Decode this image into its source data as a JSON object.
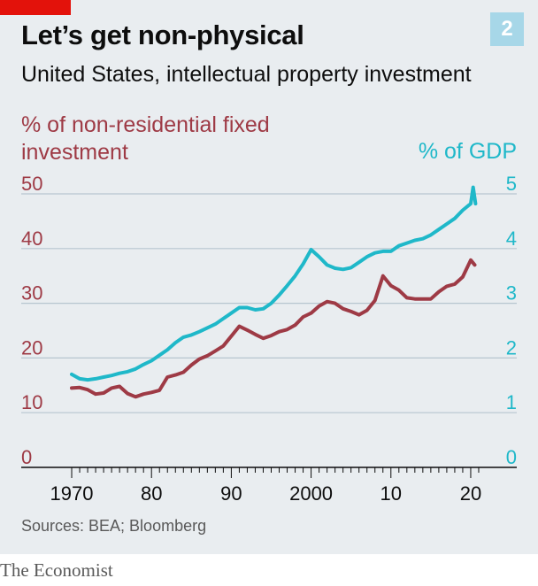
{
  "header": {
    "chart_number": "2",
    "title": "Let’s get non-physical",
    "subtitle": "United States, intellectual property investment"
  },
  "footer": {
    "source": "Sources: BEA; Bloomberg",
    "brand": "The Economist"
  },
  "colors": {
    "left_series": "#9e3a45",
    "right_series": "#1fb8c9",
    "accent": "#e3120b",
    "panel": "#e9edf0"
  },
  "chart_data": {
    "type": "line",
    "left_axis": {
      "label": "% of non-residential fixed investment",
      "ticks": [
        "50",
        "40",
        "30",
        "20",
        "10",
        "0"
      ],
      "ylim": [
        0,
        50
      ]
    },
    "right_axis": {
      "label": "% of GDP",
      "ticks": [
        "5",
        "4",
        "3",
        "2",
        "1",
        "0"
      ],
      "ylim": [
        0,
        5
      ]
    },
    "x_axis": {
      "tick_labels": [
        "1970",
        "80",
        "90",
        "2000",
        "10",
        "20"
      ],
      "tick_years": [
        1970,
        1980,
        1990,
        2000,
        2010,
        2020
      ],
      "xlim": [
        1969,
        2022
      ]
    },
    "grid": true,
    "series": [
      {
        "axis": "left",
        "x": [
          1970,
          1971,
          1972,
          1973,
          1974,
          1975,
          1976,
          1977,
          1978,
          1979,
          1980,
          1981,
          1982,
          1983,
          1984,
          1985,
          1986,
          1987,
          1988,
          1989,
          1990,
          1991,
          1992,
          1993,
          1994,
          1995,
          1996,
          1997,
          1998,
          1999,
          2000,
          2001,
          2002,
          2003,
          2004,
          2005,
          2006,
          2007,
          2008,
          2009,
          2010,
          2011,
          2012,
          2013,
          2014,
          2015,
          2016,
          2017,
          2018,
          2019,
          2020,
          2020.5
        ],
        "values": [
          14.5,
          14.6,
          14.2,
          13.4,
          13.6,
          14.5,
          14.8,
          13.5,
          12.9,
          13.4,
          13.7,
          14.1,
          16.5,
          16.9,
          17.4,
          18.7,
          19.8,
          20.4,
          21.3,
          22.2,
          24.0,
          25.8,
          25.1,
          24.3,
          23.6,
          24.1,
          24.8,
          25.2,
          26.0,
          27.5,
          28.2,
          29.5,
          30.3,
          30.0,
          29.0,
          28.5,
          27.9,
          28.7,
          30.5,
          35.0,
          33.2,
          32.4,
          31.0,
          30.8,
          30.8,
          30.8,
          32.1,
          33.1,
          33.5,
          34.8,
          37.9,
          37.0
        ]
      },
      {
        "axis": "right",
        "x": [
          1970,
          1971,
          1972,
          1973,
          1974,
          1975,
          1976,
          1977,
          1978,
          1979,
          1980,
          1981,
          1982,
          1983,
          1984,
          1985,
          1986,
          1987,
          1988,
          1989,
          1990,
          1991,
          1992,
          1993,
          1994,
          1995,
          1996,
          1997,
          1998,
          1999,
          2000,
          2001,
          2002,
          2003,
          2004,
          2005,
          2006,
          2007,
          2008,
          2009,
          2010,
          2011,
          2012,
          2013,
          2014,
          2015,
          2016,
          2017,
          2018,
          2019,
          2020,
          2020.3,
          2020.6
        ],
        "values": [
          1.7,
          1.62,
          1.6,
          1.62,
          1.65,
          1.68,
          1.72,
          1.75,
          1.8,
          1.88,
          1.95,
          2.05,
          2.15,
          2.28,
          2.38,
          2.42,
          2.48,
          2.55,
          2.62,
          2.72,
          2.82,
          2.92,
          2.92,
          2.88,
          2.9,
          3.0,
          3.15,
          3.32,
          3.5,
          3.72,
          3.98,
          3.85,
          3.7,
          3.64,
          3.62,
          3.65,
          3.75,
          3.85,
          3.92,
          3.95,
          3.95,
          4.05,
          4.1,
          4.15,
          4.18,
          4.25,
          4.35,
          4.45,
          4.55,
          4.7,
          4.82,
          5.12,
          4.82
        ]
      }
    ]
  }
}
